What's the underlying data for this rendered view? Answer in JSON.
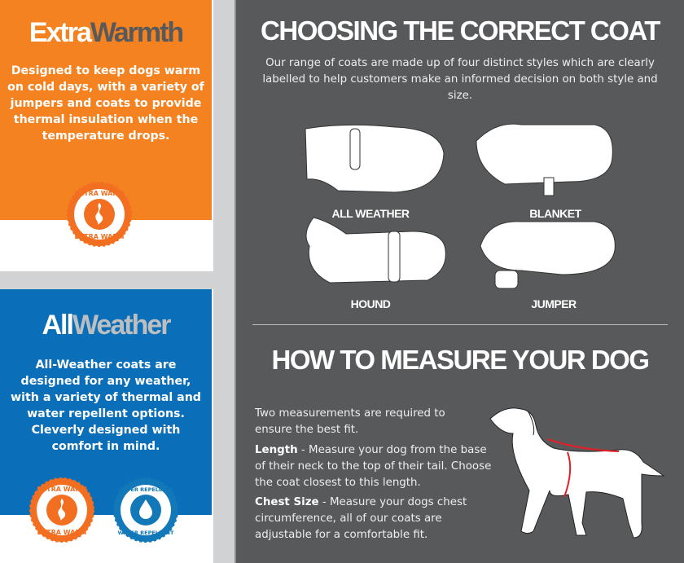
{
  "colors": {
    "orange": "#f58220",
    "blue": "#0a6fb8",
    "panel": "#58595b",
    "title_gray": "#58595b",
    "red": "#e21f26"
  },
  "extra_warmth": {
    "title_a": "Extra",
    "title_b": "Warmth",
    "description": "Designed to keep dogs warm on cold days, with a variety of jumpers and coats to provide thermal insulation when the temperature drops.",
    "badge": {
      "text": "EXTRA WARM",
      "icon": "flame-icon"
    }
  },
  "all_weather": {
    "title_a": "All",
    "title_b": "Weather",
    "description": "All-Weather coats are designed for any weather, with a variety of thermal and water repellent options. Cleverly designed with comfort in mind.",
    "badges": [
      {
        "text": "EXTRA WARM",
        "icon": "flame-icon"
      },
      {
        "text": "WATER REPELLENT",
        "icon": "water-drop-icon"
      }
    ]
  },
  "choosing": {
    "title": "CHOOSING THE CORRECT COAT",
    "intro": "Our range of coats are made up of four distinct styles which are clearly labelled to help customers make an informed decision on both style and size.",
    "coats": [
      "ALL WEATHER",
      "BLANKET",
      "HOUND",
      "JUMPER"
    ]
  },
  "measure": {
    "title": "HOW TO MEASURE YOUR DOG",
    "intro": "Two measurements are required to ensure the best fit.",
    "length_label": "Length",
    "length_text": " - Measure your dog from the base of their neck to the top of their tail. Choose the coat closest to this length.",
    "chest_label": "Chest Size",
    "chest_text": " - Measure your dogs chest circumference, all of our coats are adjustable for a comfortable fit."
  }
}
